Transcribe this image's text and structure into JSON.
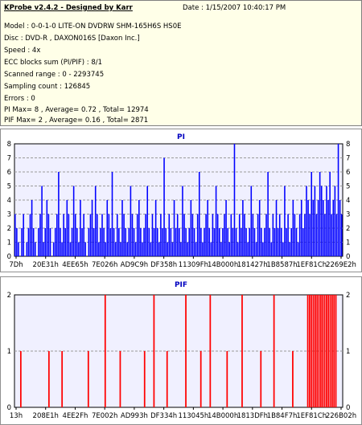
{
  "header": {
    "title": "KProbe v2.4.2 - Designed by Karr",
    "date": "Date : 1/15/2007 10:40:17 PM",
    "lines": [
      "Model : 0-0-1-0 LITE-ON DVDRW SHM-165H6S HS0E",
      "Disc : DVD-R , DAXON016S [Daxon Inc.]",
      "Speed : 4x",
      "ECC blocks sum (PI/PIF) : 8/1",
      "Scanned range : 0 - 2293745",
      "Sampling count : 126845",
      "Errors : 0",
      "PI Max= 8 , Average= 0.72 , Total= 12974",
      "PIF Max= 2 , Average= 0.16 , Total= 2871"
    ]
  },
  "colors": {
    "pi_series": "#0000ff",
    "pif_series": "#ff0000",
    "plot_bg": "#f0f0ff",
    "title": "#0000c0"
  },
  "chart_data": [
    {
      "type": "bar",
      "title": "PI",
      "xlabel": "",
      "ylabel": "",
      "ylim": [
        0,
        8
      ],
      "y_ticks": [
        "0",
        "1",
        "2",
        "3",
        "4",
        "5",
        "6",
        "7",
        "8"
      ],
      "x_ticks": [
        "7Dh",
        "20E31h",
        "4EE65h",
        "7E026h",
        "AD9C9h",
        "DF358h",
        "11309Fh",
        "14B000h",
        "181427h",
        "1B8587h",
        "1EF81Ch",
        "2269E2h"
      ],
      "grid": true,
      "series": [
        {
          "values": [
            3,
            2,
            1,
            0,
            2,
            3,
            0,
            1,
            2,
            3,
            4,
            2,
            1,
            0,
            2,
            3,
            5,
            1,
            2,
            4,
            3,
            2,
            0,
            1,
            2,
            3,
            6,
            2,
            1,
            3,
            2,
            4,
            3,
            1,
            2,
            5,
            3,
            2,
            1,
            4,
            2,
            3,
            1,
            0,
            2,
            3,
            4,
            2,
            5,
            3,
            1,
            2,
            3,
            2,
            1,
            4,
            3,
            2,
            6,
            2,
            1,
            3,
            2,
            1,
            4,
            3,
            2,
            1,
            2,
            5,
            3,
            2,
            1,
            3,
            4,
            2,
            1,
            2,
            3,
            5,
            2,
            1,
            3,
            2,
            4,
            2,
            1,
            3,
            2,
            7,
            2,
            1,
            3,
            2,
            1,
            4,
            2,
            3,
            2,
            1,
            5,
            3,
            2,
            1,
            2,
            4,
            3,
            2,
            1,
            3,
            6,
            2,
            1,
            2,
            3,
            4,
            2,
            1,
            3,
            2,
            5,
            3,
            2,
            1,
            2,
            3,
            4,
            2,
            1,
            3,
            2,
            8,
            2,
            1,
            3,
            2,
            4,
            3,
            2,
            1,
            2,
            5,
            3,
            2,
            1,
            3,
            4,
            2,
            1,
            2,
            3,
            6,
            2,
            1,
            3,
            2,
            4,
            2,
            3,
            2,
            1,
            5,
            2,
            3,
            1,
            2,
            4,
            3,
            2,
            1,
            3,
            4,
            2,
            3,
            5,
            4,
            3,
            6,
            4,
            5,
            3,
            4,
            6,
            5,
            4,
            3,
            5,
            4,
            6,
            3,
            4,
            5,
            3,
            8,
            4,
            3
          ]
        }
      ]
    },
    {
      "type": "bar",
      "title": "PIF",
      "xlabel": "",
      "ylabel": "",
      "ylim": [
        0,
        2
      ],
      "y_ticks": [
        "0",
        "1",
        "2"
      ],
      "x_ticks": [
        "13h",
        "208E1h",
        "4EE2Fh",
        "7E002h",
        "AD993h",
        "DF334h",
        "113045h",
        "14B000h",
        "1813DFh",
        "1B84F7h",
        "1EF81Ch",
        "226B02h"
      ],
      "grid": true,
      "series": [
        {
          "values": [
            0,
            0,
            0,
            1,
            0,
            0,
            0,
            0,
            0,
            0,
            0,
            0,
            0,
            0,
            0,
            0,
            0,
            0,
            1,
            0,
            0,
            0,
            0,
            0,
            0,
            1,
            0,
            0,
            0,
            0,
            0,
            0,
            0,
            0,
            0,
            0,
            0,
            0,
            0,
            1,
            0,
            0,
            0,
            0,
            0,
            0,
            0,
            0,
            2,
            0,
            0,
            0,
            0,
            0,
            0,
            0,
            1,
            0,
            0,
            0,
            0,
            0,
            0,
            0,
            0,
            0,
            0,
            0,
            0,
            1,
            0,
            0,
            0,
            0,
            2,
            0,
            0,
            0,
            0,
            0,
            0,
            1,
            0,
            0,
            0,
            0,
            0,
            0,
            0,
            0,
            0,
            2,
            0,
            0,
            0,
            0,
            0,
            0,
            0,
            1,
            0,
            0,
            0,
            0,
            2,
            0,
            0,
            0,
            0,
            0,
            0,
            0,
            0,
            1,
            0,
            0,
            0,
            0,
            0,
            0,
            0,
            2,
            0,
            0,
            0,
            0,
            0,
            0,
            0,
            0,
            0,
            1,
            0,
            0,
            0,
            0,
            0,
            0,
            2,
            0,
            0,
            0,
            0,
            0,
            0,
            0,
            0,
            0,
            1,
            0,
            0,
            0,
            0,
            0,
            0,
            0,
            2,
            2,
            2,
            2,
            2,
            2,
            2,
            2,
            2,
            2,
            2,
            2,
            2,
            2,
            2,
            2,
            0,
            0,
            0
          ]
        }
      ]
    }
  ]
}
